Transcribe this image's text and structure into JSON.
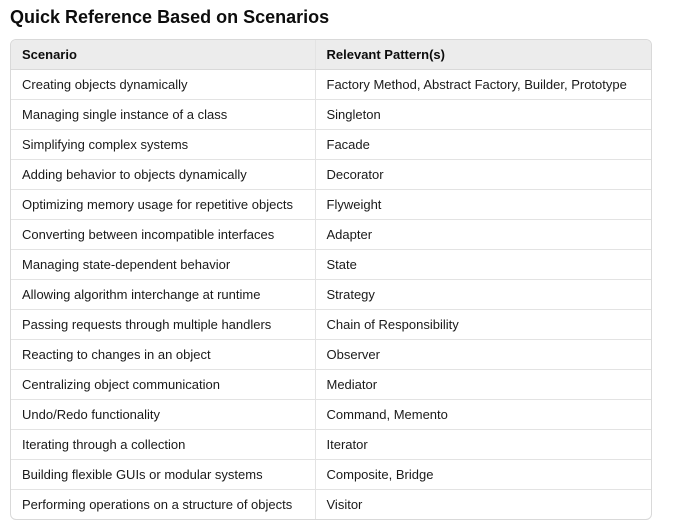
{
  "title": "Quick Reference Based on Scenarios",
  "table": {
    "headers": [
      "Scenario",
      "Relevant Pattern(s)"
    ],
    "rows": [
      [
        "Creating objects dynamically",
        "Factory Method, Abstract Factory, Builder, Prototype"
      ],
      [
        "Managing single instance of a class",
        "Singleton"
      ],
      [
        "Simplifying complex systems",
        "Facade"
      ],
      [
        "Adding behavior to objects dynamically",
        "Decorator"
      ],
      [
        "Optimizing memory usage for repetitive objects",
        "Flyweight"
      ],
      [
        "Converting between incompatible interfaces",
        "Adapter"
      ],
      [
        "Managing state-dependent behavior",
        "State"
      ],
      [
        "Allowing algorithm interchange at runtime",
        "Strategy"
      ],
      [
        "Passing requests through multiple handlers",
        "Chain of Responsibility"
      ],
      [
        "Reacting to changes in an object",
        "Observer"
      ],
      [
        "Centralizing object communication",
        "Mediator"
      ],
      [
        "Undo/Redo functionality",
        "Command, Memento"
      ],
      [
        "Iterating through a collection",
        "Iterator"
      ],
      [
        "Building flexible GUIs or modular systems",
        "Composite, Bridge"
      ],
      [
        "Performing operations on a structure of objects",
        "Visitor"
      ]
    ]
  }
}
